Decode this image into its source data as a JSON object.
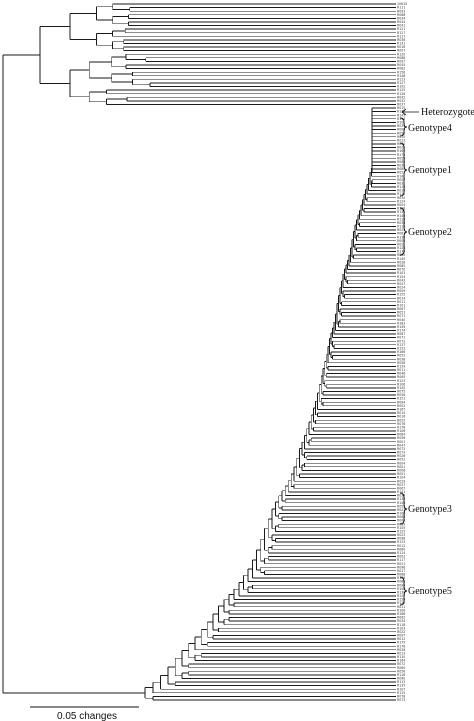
{
  "annotations": [
    {
      "label": "Heterozygote",
      "kind": "arrow"
    },
    {
      "label": "Genotype4",
      "kind": "brace"
    },
    {
      "label": "Genotype1",
      "kind": "brace"
    },
    {
      "label": "Genotype2",
      "kind": "brace"
    },
    {
      "label": "Genotype3",
      "kind": "brace"
    },
    {
      "label": "Genotype5",
      "kind": "brace"
    }
  ],
  "scale_bar": {
    "label": "0.05 changes",
    "length_changes": 0.05
  },
  "leaf_labels": [
    "10615",
    "R111",
    "R093",
    "R068",
    "R034",
    "R044",
    "R041",
    "R121",
    "R127",
    "R117",
    "R038",
    "R131",
    "R016",
    "R007",
    "R120",
    "R088",
    "R097",
    "R045",
    "R082",
    "R156",
    "R148",
    "R113",
    "R127",
    "R102",
    "R125",
    "R126",
    "R042",
    "R032",
    "R037",
    "R015",
    "R172",
    "R145",
    "R114",
    "R101",
    "R039",
    "R009",
    "R056",
    "R020",
    "R023",
    "R060",
    "R025",
    "R162",
    "R172",
    "R054",
    "R063",
    "R034",
    "R080",
    "R027",
    "R141",
    "R057",
    "R031",
    "R113",
    "R019",
    "R111",
    "R030",
    "R124",
    "R004",
    "R128",
    "R136",
    "R143",
    "R113",
    "R033",
    "R116",
    "R023",
    "R061",
    "R130",
    "R005",
    "R021",
    "R124",
    "R133",
    "R065",
    "R140",
    "R028",
    "R085",
    "R070",
    "R103",
    "R154",
    "R043",
    "R047",
    "R024",
    "R009",
    "R155",
    "R014",
    "R011",
    "R101",
    "R067",
    "R051",
    "R071",
    "R040",
    "R183",
    "R149",
    "R174",
    "R087",
    "R071",
    "R072",
    "R137",
    "R153",
    "R166",
    "R052",
    "R038",
    "R058",
    "R139",
    "R011",
    "R046",
    "R065",
    "R123",
    "R106",
    "R145",
    "R075",
    "R056",
    "R151",
    "R094",
    "R002",
    "R167",
    "R014",
    "R016",
    "R025",
    "R076",
    "R178",
    "R106",
    "R084",
    "R056",
    "R001",
    "R047",
    "R072",
    "R073",
    "R026",
    "R052",
    "R004",
    "R001",
    "R006",
    "R051",
    "R104",
    "R029",
    "R037",
    "R067",
    "R141",
    "R033",
    "R133",
    "R146",
    "R053",
    "R047",
    "R108",
    "R066",
    "R009",
    "R089",
    "R105",
    "R125",
    "R023",
    "R098",
    "R123",
    "R012",
    "R080",
    "R114",
    "R002",
    "R117",
    "R021",
    "R096",
    "R017",
    "R088",
    "R149",
    "R086",
    "R099",
    "R108",
    "R138",
    "R127",
    "R159",
    "R120",
    "R011",
    "R106",
    "R166",
    "R062",
    "R034",
    "R118",
    "R103",
    "R022",
    "R097",
    "R012",
    "R175",
    "R176",
    "R026",
    "R013",
    "R110",
    "R164",
    "R072",
    "R060",
    "R056",
    "R116",
    "R090",
    "R113",
    "R135",
    "R107",
    "R115",
    "R078",
    "R073"
  ]
}
